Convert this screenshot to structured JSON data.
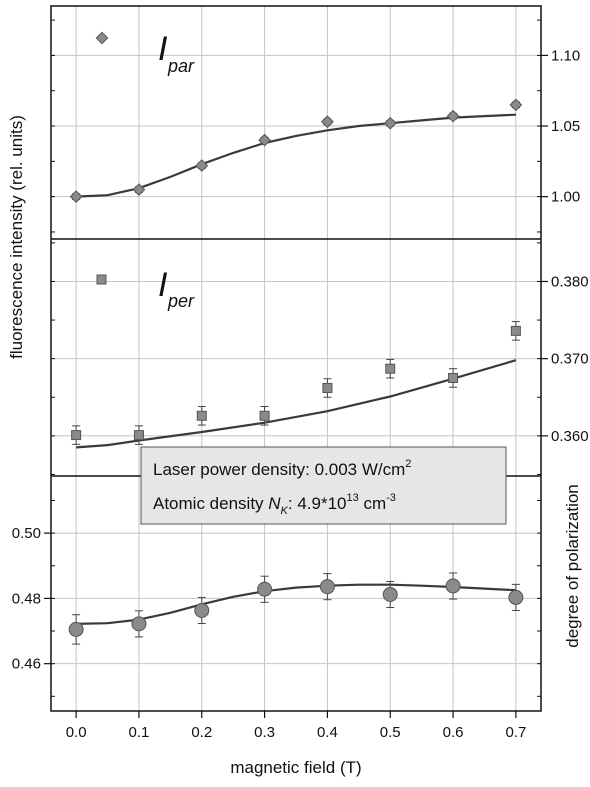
{
  "chart_data": {
    "type": "scatter",
    "shared_x": {
      "label": "magnetic field (T)",
      "range": [
        -0.04,
        0.74
      ],
      "ticks": [
        0.0,
        0.1,
        0.2,
        0.3,
        0.4,
        0.5,
        0.6,
        0.7
      ],
      "tick_labels": [
        "0.0",
        "0.1",
        "0.2",
        "0.3",
        "0.4",
        "0.5",
        "0.6",
        "0.7"
      ]
    },
    "shared_left_axis_label": "fluorescence intensity (rel. units)",
    "grid": true,
    "panels": [
      {
        "name": "par",
        "axis_side": "right",
        "ylim": [
          0.97,
          1.135
        ],
        "yticks": [
          1.0,
          1.05,
          1.1
        ],
        "ytick_labels": [
          "1.00",
          "1.05",
          "1.10"
        ],
        "marker": "diamond",
        "label_main": "I",
        "label_sub": "par",
        "x": [
          0.0,
          0.1,
          0.2,
          0.3,
          0.4,
          0.5,
          0.6,
          0.7
        ],
        "y": [
          1.0,
          1.005,
          1.022,
          1.04,
          1.053,
          1.052,
          1.057,
          1.065
        ],
        "err": [
          0.002,
          0.002,
          0.002,
          0.002,
          0.002,
          0.002,
          0.002,
          0.002
        ],
        "fit": [
          [
            0.0,
            1.0
          ],
          [
            0.05,
            1.001
          ],
          [
            0.1,
            1.006
          ],
          [
            0.15,
            1.014
          ],
          [
            0.2,
            1.023
          ],
          [
            0.25,
            1.031
          ],
          [
            0.3,
            1.038
          ],
          [
            0.35,
            1.043
          ],
          [
            0.4,
            1.047
          ],
          [
            0.45,
            1.05
          ],
          [
            0.5,
            1.052
          ],
          [
            0.55,
            1.054
          ],
          [
            0.6,
            1.056
          ],
          [
            0.65,
            1.057
          ],
          [
            0.7,
            1.058
          ]
        ]
      },
      {
        "name": "per",
        "axis_side": "right",
        "ylim": [
          0.3548,
          0.3855
        ],
        "yticks": [
          0.36,
          0.37,
          0.38
        ],
        "ytick_labels": [
          "0.360",
          "0.370",
          "0.380"
        ],
        "marker": "square",
        "label_main": "I",
        "label_sub": "per",
        "x": [
          0.0,
          0.1,
          0.2,
          0.3,
          0.4,
          0.5,
          0.6,
          0.7
        ],
        "y": [
          0.3601,
          0.3601,
          0.3626,
          0.3626,
          0.3662,
          0.3687,
          0.3675,
          0.3736
        ],
        "err": [
          0.0012,
          0.0012,
          0.0012,
          0.0012,
          0.0012,
          0.0012,
          0.0012,
          0.0012
        ],
        "fit": [
          [
            0.0,
            0.3585
          ],
          [
            0.05,
            0.3588
          ],
          [
            0.1,
            0.3594
          ],
          [
            0.2,
            0.3605
          ],
          [
            0.3,
            0.3617
          ],
          [
            0.4,
            0.3632
          ],
          [
            0.5,
            0.3651
          ],
          [
            0.6,
            0.3674
          ],
          [
            0.7,
            0.3698
          ]
        ]
      },
      {
        "name": "degree",
        "axis_side": "left",
        "axis_label_right": "degree of polarization",
        "ylim": [
          0.4455,
          0.5175
        ],
        "yticks": [
          0.46,
          0.48,
          0.5
        ],
        "ytick_labels": [
          "0.46",
          "0.48",
          "0.50"
        ],
        "marker": "circle",
        "x": [
          0.0,
          0.1,
          0.2,
          0.3,
          0.4,
          0.5,
          0.6,
          0.7
        ],
        "y": [
          0.4705,
          0.4722,
          0.4763,
          0.4828,
          0.4836,
          0.4812,
          0.4838,
          0.4803
        ],
        "err": [
          0.0045,
          0.004,
          0.004,
          0.004,
          0.004,
          0.004,
          0.004,
          0.004
        ],
        "fit": [
          [
            0.0,
            0.4722
          ],
          [
            0.05,
            0.4724
          ],
          [
            0.1,
            0.4735
          ],
          [
            0.15,
            0.4756
          ],
          [
            0.2,
            0.4782
          ],
          [
            0.25,
            0.4805
          ],
          [
            0.3,
            0.4822
          ],
          [
            0.35,
            0.4833
          ],
          [
            0.4,
            0.4839
          ],
          [
            0.45,
            0.4842
          ],
          [
            0.5,
            0.4842
          ],
          [
            0.55,
            0.4839
          ],
          [
            0.6,
            0.4835
          ],
          [
            0.65,
            0.483
          ],
          [
            0.7,
            0.4825
          ]
        ]
      }
    ],
    "annotation": {
      "line1": "Laser power density: 0.003 W/cm",
      "line1_sup": "2",
      "line2_a": "Atomic density ",
      "line2_n": "N",
      "line2_k": "K",
      "line2_b": ": 4.9*10",
      "line2_exp": "13",
      "line2_c": " cm",
      "line2_unit_exp": "-3"
    },
    "colors": {
      "marker_fill": "#8a8a8a",
      "marker_edge": "#555555",
      "fit_line": "#3a3a3a",
      "grid": "#c4c4c4",
      "annotation_bg": "#e6e6e6"
    }
  }
}
